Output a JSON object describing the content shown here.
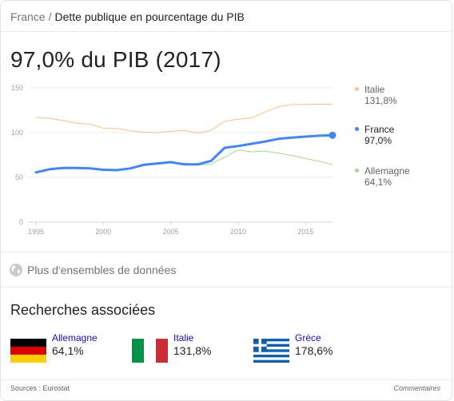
{
  "breadcrumb": {
    "parent": "France",
    "separator": "/",
    "current": "Dette publique en pourcentage du PIB"
  },
  "headline": "97,0% du PIB (2017)",
  "chart_data": {
    "type": "line",
    "x": [
      1995,
      1996,
      1997,
      1998,
      1999,
      2000,
      2001,
      2002,
      2003,
      2004,
      2005,
      2006,
      2007,
      2008,
      2009,
      2010,
      2011,
      2012,
      2013,
      2014,
      2015,
      2016,
      2017
    ],
    "series": [
      {
        "name": "Italie",
        "color": "#f8c08a",
        "width": 1,
        "values": [
          117.0,
          116.0,
          113.5,
          110.5,
          109.5,
          105.0,
          104.5,
          102.0,
          100.5,
          100.0,
          101.5,
          102.5,
          99.5,
          102.5,
          112.5,
          115.0,
          116.5,
          123.0,
          129.0,
          131.5,
          131.5,
          132.0,
          131.8
        ]
      },
      {
        "name": "Allemagne",
        "color": "#a8d595",
        "width": 1,
        "values": [
          55.5,
          58.5,
          59.5,
          60.0,
          60.5,
          59.0,
          58.0,
          59.5,
          63.0,
          64.5,
          66.5,
          66.0,
          63.5,
          65.0,
          72.5,
          80.5,
          78.5,
          79.5,
          77.0,
          74.5,
          71.0,
          68.0,
          64.1
        ]
      },
      {
        "name": "France",
        "color": "#4285f4",
        "width": 3,
        "values": [
          55.5,
          59.0,
          60.5,
          60.5,
          60.0,
          58.5,
          58.0,
          60.0,
          64.0,
          65.5,
          67.0,
          64.5,
          64.5,
          68.5,
          83.0,
          85.0,
          87.5,
          90.0,
          93.0,
          94.5,
          95.5,
          96.5,
          97.0
        ]
      }
    ],
    "yticks": [
      0,
      50,
      100,
      150
    ],
    "xticks": [
      1995,
      2000,
      2005,
      2010,
      2015
    ],
    "ylim": [
      0,
      150
    ],
    "xlim": [
      1995,
      2017
    ],
    "grid": true,
    "legend_position": "right",
    "last_point_marker": "France"
  },
  "legend": {
    "italie": {
      "name": "Italie",
      "value": "131,8%",
      "color": "#f8c08a"
    },
    "france": {
      "name": "France",
      "value": "97,0%",
      "color": "#4285f4"
    },
    "allemagne": {
      "name": "Allemagne",
      "value": "64,1%",
      "color": "#a8d595"
    }
  },
  "more_data": {
    "label": "Plus d'ensembles de données",
    "icon": "globe-icon"
  },
  "related": {
    "title": "Recherches associées",
    "items": [
      {
        "name": "Allemagne",
        "value": "64,1%",
        "flag": "germany-flag"
      },
      {
        "name": "Italie",
        "value": "131,8%",
        "flag": "italy-flag"
      },
      {
        "name": "Grèce",
        "value": "178,6%",
        "flag": "greece-flag"
      }
    ]
  },
  "footer": {
    "sources": "Sources : Eurostat",
    "feedback": "Commentaires"
  }
}
